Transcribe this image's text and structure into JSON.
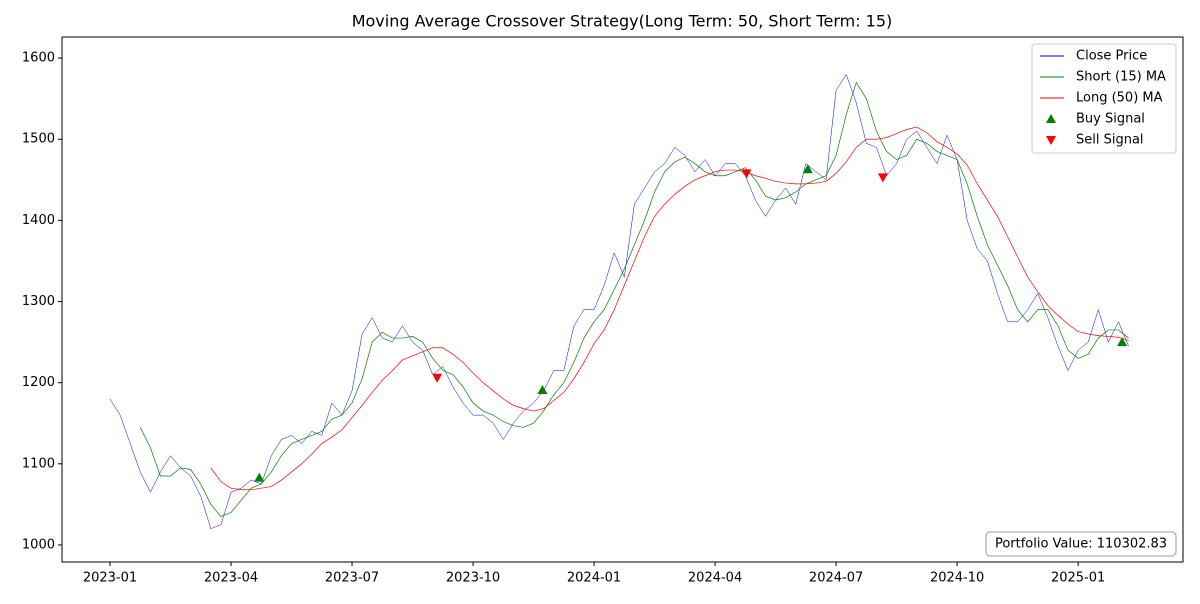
{
  "chart_data": {
    "type": "line",
    "title": "Moving Average Crossover Strategy(Long Term: 50, Short Term: 15)",
    "annotation": "Portfolio Value: 110302.83",
    "legend": "upper right",
    "xlim": [
      -1.19,
      26.6
    ],
    "ylim": [
      979,
      1626
    ],
    "xticks": [
      {
        "value": 0,
        "label": "2023-01"
      },
      {
        "value": 3,
        "label": "2023-04"
      },
      {
        "value": 6,
        "label": "2023-07"
      },
      {
        "value": 9,
        "label": "2023-10"
      },
      {
        "value": 12,
        "label": "2024-01"
      },
      {
        "value": 15,
        "label": "2024-04"
      },
      {
        "value": 18,
        "label": "2024-07"
      },
      {
        "value": 21,
        "label": "2024-10"
      },
      {
        "value": 24,
        "label": "2025-01"
      }
    ],
    "yticks": [
      1000,
      1100,
      1200,
      1300,
      1400,
      1500,
      1600
    ],
    "x": [
      0,
      0.25,
      0.5,
      0.75,
      1,
      1.25,
      1.5,
      1.75,
      2,
      2.25,
      2.5,
      2.75,
      3,
      3.25,
      3.5,
      3.75,
      4,
      4.25,
      4.5,
      4.75,
      5,
      5.25,
      5.5,
      5.75,
      6,
      6.25,
      6.5,
      6.75,
      7,
      7.25,
      7.5,
      7.75,
      8,
      8.25,
      8.5,
      8.75,
      9,
      9.25,
      9.5,
      9.75,
      10,
      10.25,
      10.5,
      10.75,
      11,
      11.25,
      11.5,
      11.75,
      12,
      12.25,
      12.5,
      12.75,
      13,
      13.25,
      13.5,
      13.75,
      14,
      14.25,
      14.5,
      14.75,
      15,
      15.25,
      15.5,
      15.75,
      16,
      16.25,
      16.5,
      16.75,
      17,
      17.25,
      17.5,
      17.75,
      18,
      18.25,
      18.5,
      18.75,
      19,
      19.25,
      19.5,
      19.75,
      20,
      20.25,
      20.5,
      20.75,
      21,
      21.25,
      21.5,
      21.75,
      22,
      22.25,
      22.5,
      22.75,
      23,
      23.25,
      23.5,
      23.75,
      24,
      24.25,
      24.5,
      24.75,
      25,
      25.25
    ],
    "series": [
      {
        "name": "Close Price",
        "color": "#0000ff",
        "width": 0.5,
        "values": [
          1180,
          1160,
          1125,
          1090,
          1065,
          1090,
          1110,
          1095,
          1085,
          1060,
          1020,
          1025,
          1065,
          1070,
          1080,
          1075,
          1110,
          1130,
          1135,
          1125,
          1140,
          1135,
          1175,
          1160,
          1190,
          1260,
          1280,
          1255,
          1250,
          1270,
          1250,
          1240,
          1210,
          1220,
          1195,
          1175,
          1160,
          1160,
          1150,
          1130,
          1150,
          1165,
          1175,
          1190,
          1215,
          1215,
          1270,
          1290,
          1290,
          1320,
          1360,
          1330,
          1420,
          1440,
          1460,
          1470,
          1490,
          1480,
          1460,
          1475,
          1455,
          1470,
          1470,
          1455,
          1425,
          1405,
          1425,
          1440,
          1420,
          1470,
          1460,
          1450,
          1560,
          1580,
          1545,
          1495,
          1490,
          1455,
          1470,
          1500,
          1510,
          1490,
          1470,
          1505,
          1475,
          1400,
          1365,
          1350,
          1310,
          1275,
          1275,
          1290,
          1310,
          1280,
          1245,
          1215,
          1240,
          1250,
          1290,
          1250,
          1275,
          1245
        ]
      },
      {
        "name": "Short (15) MA",
        "color": "#008000",
        "width": 0.7,
        "values": [
          null,
          null,
          null,
          1145,
          1120,
          1085,
          1085,
          1095,
          1093,
          1075,
          1050,
          1035,
          1040,
          1055,
          1070,
          1075,
          1090,
          1110,
          1125,
          1130,
          1135,
          1140,
          1155,
          1160,
          1175,
          1205,
          1250,
          1262,
          1255,
          1255,
          1257,
          1250,
          1230,
          1215,
          1210,
          1195,
          1175,
          1165,
          1160,
          1152,
          1147,
          1145,
          1150,
          1165,
          1185,
          1200,
          1225,
          1255,
          1275,
          1290,
          1315,
          1340,
          1370,
          1400,
          1435,
          1460,
          1472,
          1478,
          1470,
          1460,
          1455,
          1455,
          1460,
          1465,
          1450,
          1430,
          1425,
          1428,
          1435,
          1445,
          1450,
          1455,
          1480,
          1530,
          1570,
          1550,
          1510,
          1485,
          1475,
          1480,
          1500,
          1495,
          1485,
          1480,
          1475,
          1445,
          1405,
          1370,
          1345,
          1320,
          1290,
          1275,
          1290,
          1290,
          1270,
          1240,
          1230,
          1235,
          1255,
          1265,
          1265,
          1255
        ]
      },
      {
        "name": "Long (50) MA",
        "color": "#ff0000",
        "width": 0.7,
        "values": [
          null,
          null,
          null,
          null,
          null,
          null,
          null,
          null,
          null,
          null,
          1095,
          1078,
          1070,
          1068,
          1068,
          1070,
          1072,
          1080,
          1090,
          1100,
          1112,
          1125,
          1133,
          1142,
          1157,
          1172,
          1188,
          1203,
          1215,
          1228,
          1233,
          1238,
          1243,
          1243,
          1235,
          1225,
          1212,
          1200,
          1190,
          1180,
          1172,
          1168,
          1165,
          1168,
          1178,
          1188,
          1205,
          1225,
          1248,
          1265,
          1290,
          1320,
          1350,
          1380,
          1405,
          1420,
          1432,
          1442,
          1450,
          1455,
          1460,
          1462,
          1462,
          1460,
          1455,
          1452,
          1448,
          1446,
          1445,
          1445,
          1446,
          1448,
          1458,
          1472,
          1490,
          1500,
          1500,
          1502,
          1507,
          1512,
          1515,
          1508,
          1497,
          1490,
          1482,
          1468,
          1445,
          1425,
          1405,
          1380,
          1355,
          1330,
          1312,
          1295,
          1283,
          1272,
          1263,
          1260,
          1258,
          1257,
          1256,
          1252
        ]
      },
      {
        "name": "Buy Signal",
        "color": "#008000",
        "marker": "^",
        "x": [
          3.7,
          10.72,
          17.3,
          25.09
        ],
        "values": [
          1083,
          1191,
          1463,
          1250
        ]
      },
      {
        "name": "Sell Signal",
        "color": "#ff0000",
        "marker": "v",
        "x": [
          8.11,
          15.78,
          19.16
        ],
        "values": [
          1206,
          1458,
          1453
        ]
      }
    ]
  }
}
